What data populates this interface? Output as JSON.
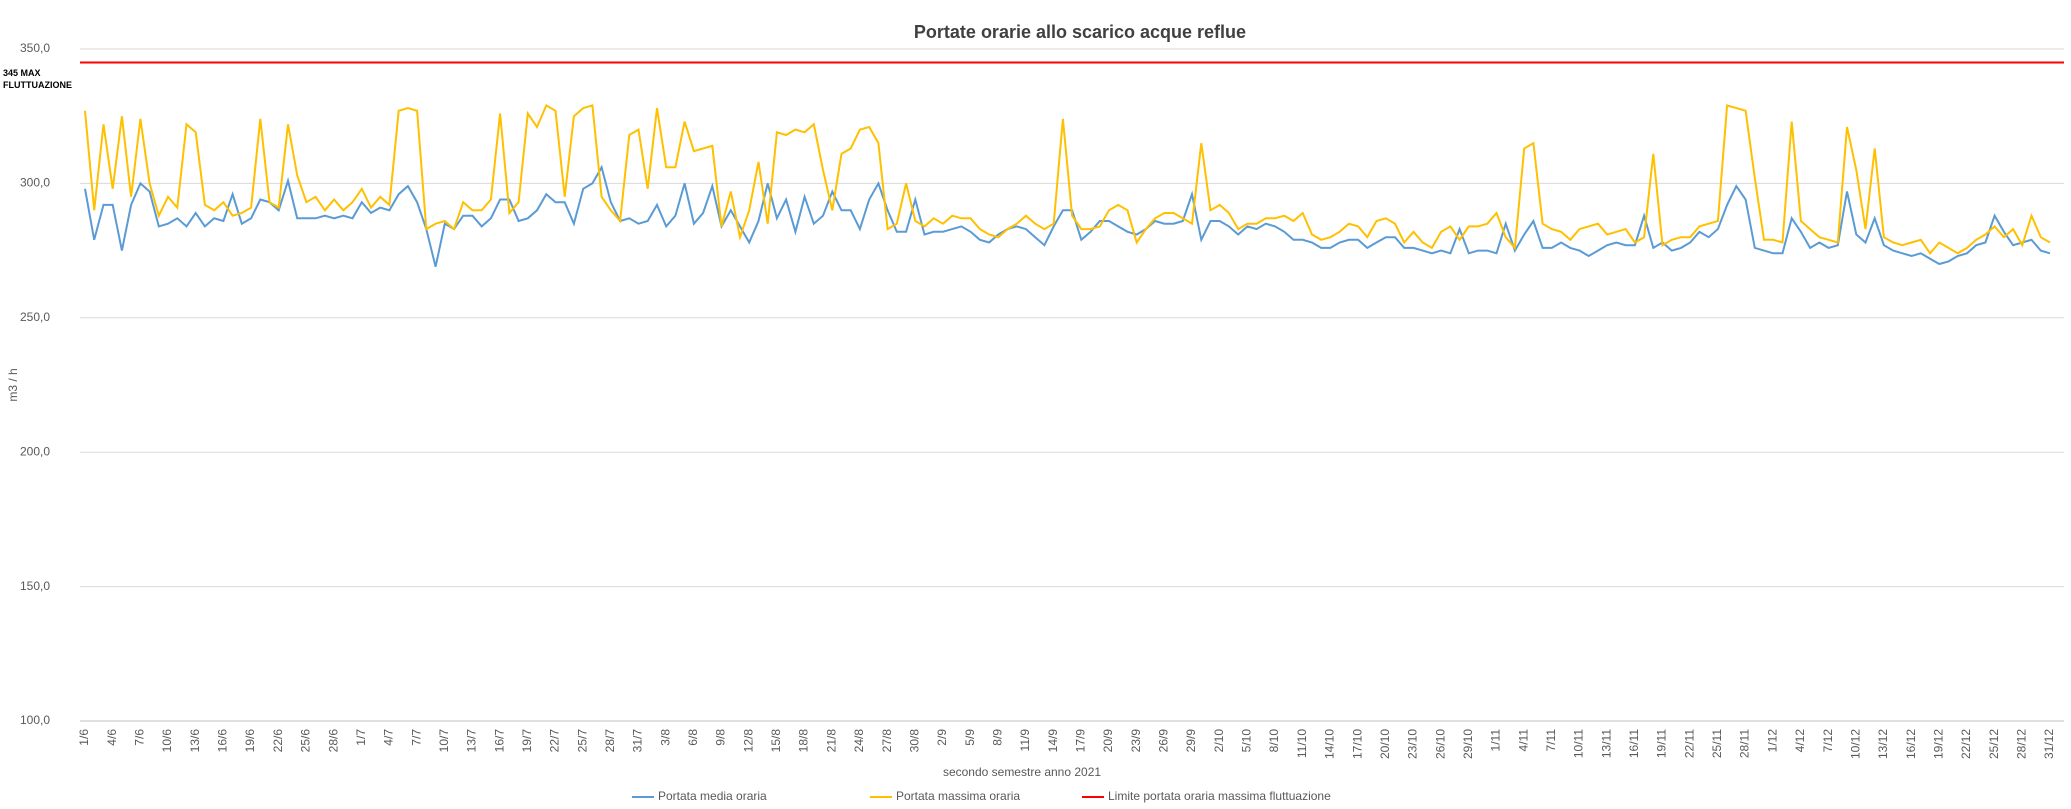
{
  "chart_data": {
    "type": "line",
    "title": "Portate orarie allo scarico acque reflue",
    "x_label": "secondo semestre anno 2021",
    "y_label": "m3 / h",
    "ylim": [
      100,
      350
    ],
    "yticks": [
      {
        "value": 100,
        "label": "100,0"
      },
      {
        "value": 150,
        "label": "150,0"
      },
      {
        "value": 200,
        "label": "200,0"
      },
      {
        "value": 250,
        "label": "250,0"
      },
      {
        "value": 300,
        "label": "300,0"
      },
      {
        "value": 350,
        "label": "350,0"
      }
    ],
    "grid": true,
    "legend": "bottom",
    "categories": [
      "1/6",
      null,
      null,
      "4/6",
      null,
      null,
      "7/6",
      null,
      null,
      "10/6",
      null,
      null,
      "13/6",
      null,
      null,
      "16/6",
      null,
      null,
      "19/6",
      null,
      null,
      "22/6",
      null,
      null,
      "25/6",
      null,
      null,
      "28/6",
      null,
      null,
      "1/7",
      null,
      null,
      "4/7",
      null,
      null,
      "7/7",
      null,
      null,
      "10/7",
      null,
      null,
      "13/7",
      null,
      null,
      "16/7",
      null,
      null,
      "19/7",
      null,
      null,
      "22/7",
      null,
      null,
      "25/7",
      null,
      null,
      "28/7",
      null,
      null,
      "31/7",
      null,
      null,
      "3/8",
      null,
      null,
      "6/8",
      null,
      null,
      "9/8",
      null,
      null,
      "12/8",
      null,
      null,
      "15/8",
      null,
      null,
      "18/8",
      null,
      null,
      "21/8",
      null,
      null,
      "24/8",
      null,
      null,
      "27/8",
      null,
      null,
      "30/8",
      null,
      null,
      "2/9",
      null,
      null,
      "5/9",
      null,
      null,
      "8/9",
      null,
      null,
      "11/9",
      null,
      null,
      "14/9",
      null,
      null,
      "17/9",
      null,
      null,
      "20/9",
      null,
      null,
      "23/9",
      null,
      null,
      "26/9",
      null,
      null,
      "29/9",
      null,
      null,
      "2/10",
      null,
      null,
      "5/10",
      null,
      null,
      "8/10",
      null,
      null,
      "11/10",
      null,
      null,
      "14/10",
      null,
      null,
      "17/10",
      null,
      null,
      "20/10",
      null,
      null,
      "23/10",
      null,
      null,
      "26/10",
      null,
      null,
      "29/10",
      null,
      null,
      "1/11",
      null,
      null,
      "4/11",
      null,
      null,
      "7/11",
      null,
      null,
      "10/11",
      null,
      null,
      "13/11",
      null,
      null,
      "16/11",
      null,
      null,
      "19/11",
      null,
      null,
      "22/11",
      null,
      null,
      "25/11",
      null,
      null,
      "28/11",
      null,
      null,
      "1/12",
      null,
      null,
      "4/12",
      null,
      null,
      "7/12",
      null,
      null,
      "10/12",
      null,
      null,
      "13/12",
      null,
      null,
      "16/12",
      null,
      null,
      "19/12",
      null,
      null,
      "22/12",
      null,
      null,
      "25/12",
      null,
      null,
      "28/12",
      null,
      null,
      "31/12"
    ],
    "series": [
      {
        "name": "Portata media oraria",
        "color": "#5b9bd5",
        "values": [
          298,
          279,
          292,
          292,
          275,
          292,
          300,
          297,
          284,
          285,
          287,
          284,
          289,
          284,
          287,
          286,
          296,
          285,
          287,
          294,
          293,
          290,
          301,
          287,
          287,
          287,
          288,
          287,
          288,
          287,
          293,
          289,
          291,
          290,
          296,
          299,
          293,
          283,
          269,
          285,
          283,
          288,
          288,
          284,
          287,
          294,
          294,
          286,
          287,
          290,
          296,
          293,
          293,
          285,
          298,
          300,
          306,
          293,
          286,
          287,
          285,
          286,
          292,
          284,
          288,
          300,
          285,
          289,
          299,
          284,
          290,
          284,
          278,
          286,
          300,
          287,
          294,
          282,
          295,
          285,
          288,
          297,
          290,
          290,
          283,
          294,
          300,
          290,
          282,
          282,
          294,
          281,
          282,
          282,
          283,
          284,
          282,
          279,
          278,
          281,
          283,
          284,
          283,
          280,
          277,
          284,
          290,
          290,
          279,
          282,
          286,
          286,
          284,
          282,
          281,
          283,
          286,
          285,
          285,
          286,
          296,
          279,
          286,
          286,
          284,
          281,
          284,
          283,
          285,
          284,
          282,
          279,
          279,
          278,
          276,
          276,
          278,
          279,
          279,
          276,
          278,
          280,
          280,
          276,
          276,
          275,
          274,
          275,
          274,
          283,
          274,
          275,
          275,
          274,
          285,
          275,
          281,
          286,
          276,
          276,
          278,
          276,
          275,
          273,
          275,
          277,
          278,
          277,
          277,
          288,
          276,
          278,
          275,
          276,
          278,
          282,
          280,
          283,
          292,
          299,
          294,
          276,
          275,
          274,
          274,
          287,
          282,
          276,
          278,
          276,
          277,
          297,
          281,
          278,
          287,
          277,
          275,
          274,
          273,
          274,
          272,
          270,
          271,
          273,
          274,
          277,
          278,
          288,
          282,
          277,
          278,
          279,
          275,
          274
        ]
      },
      {
        "name": "Portata massima oraria",
        "color": "#ffc000",
        "values": [
          327,
          290,
          322,
          298,
          325,
          295,
          324,
          300,
          288,
          295,
          291,
          322,
          319,
          292,
          290,
          293,
          288,
          289,
          291,
          324,
          293,
          291,
          322,
          303,
          293,
          295,
          290,
          294,
          290,
          293,
          298,
          291,
          295,
          292,
          327,
          328,
          327,
          283,
          285,
          286,
          283,
          293,
          290,
          290,
          294,
          326,
          289,
          293,
          326,
          321,
          329,
          327,
          295,
          325,
          328,
          329,
          295,
          290,
          286,
          318,
          320,
          298,
          328,
          306,
          306,
          323,
          312,
          313,
          314,
          284,
          297,
          280,
          290,
          308,
          285,
          319,
          318,
          320,
          319,
          322,
          305,
          290,
          311,
          313,
          320,
          321,
          315,
          283,
          285,
          300,
          286,
          284,
          287,
          285,
          288,
          287,
          287,
          283,
          281,
          280,
          283,
          285,
          288,
          285,
          283,
          285,
          324,
          288,
          283,
          283,
          284,
          290,
          292,
          290,
          278,
          283,
          287,
          289,
          289,
          287,
          285,
          315,
          290,
          292,
          289,
          283,
          285,
          285,
          287,
          287,
          288,
          286,
          289,
          281,
          279,
          280,
          282,
          285,
          284,
          280,
          286,
          287,
          285,
          278,
          282,
          278,
          276,
          282,
          284,
          279,
          284,
          284,
          285,
          289,
          280,
          276,
          313,
          315,
          285,
          283,
          282,
          279,
          283,
          284,
          285,
          281,
          282,
          283,
          278,
          280,
          311,
          277,
          279,
          280,
          280,
          284,
          285,
          286,
          329,
          328,
          327,
          302,
          279,
          279,
          278,
          323,
          286,
          283,
          280,
          279,
          278,
          321,
          305,
          283,
          313,
          280,
          278,
          277,
          278,
          279,
          274,
          278,
          276,
          274,
          276,
          279,
          281,
          284,
          280,
          283,
          277,
          288,
          280,
          278
        ]
      }
    ],
    "reference_lines": [
      {
        "name": "Limite portata oraria massima fluttuazione",
        "color": "#ff0000",
        "value": 345,
        "label": [
          "345 MAX",
          "FLUTTUAZIONE"
        ]
      }
    ]
  }
}
